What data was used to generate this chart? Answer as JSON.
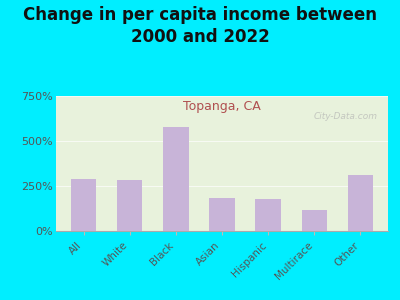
{
  "title": "Change in per capita income between\n2000 and 2022",
  "subtitle": "Topanga, CA",
  "categories": [
    "All",
    "White",
    "Black",
    "Asian",
    "Hispanic",
    "Multirace",
    "Other"
  ],
  "values": [
    290,
    285,
    580,
    185,
    178,
    115,
    310
  ],
  "bar_color": "#c8b4d8",
  "background_outer": "#00eeff",
  "background_plot": "#e8f2dc",
  "title_fontsize": 12,
  "subtitle_fontsize": 9,
  "subtitle_color": "#b05050",
  "title_color": "#111111",
  "tick_label_color": "#555555",
  "ylim": [
    0,
    750
  ],
  "yticks": [
    0,
    250,
    500,
    750
  ],
  "watermark": "City-Data.com"
}
